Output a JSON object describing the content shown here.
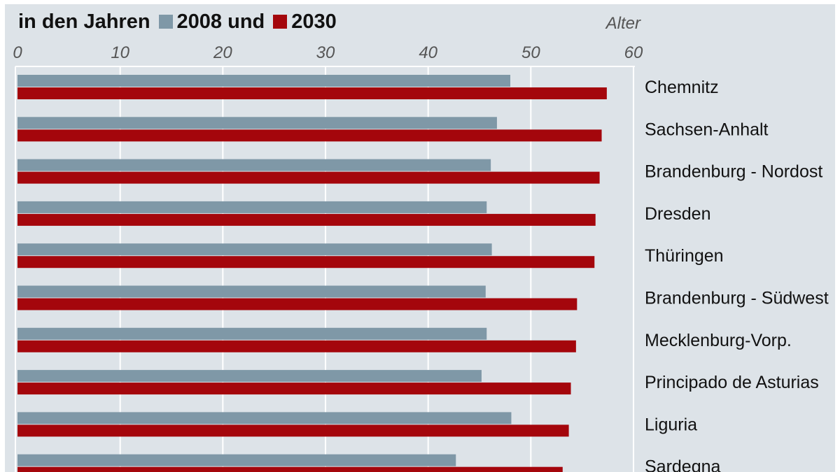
{
  "legend": {
    "prefix": "in den Jahren",
    "series_a": "2008 und",
    "series_b": "2030"
  },
  "colors": {
    "panel": "#dde3e8",
    "series_2008": "#7f98a7",
    "series_2030": "#a4060c",
    "grid": "#ffffff",
    "text": "#111111",
    "axis_text": "#555555"
  },
  "chart_data": {
    "type": "bar",
    "orientation": "horizontal",
    "xlabel": "Alter",
    "xlim": [
      0,
      60
    ],
    "xticks": [
      0,
      10,
      20,
      30,
      40,
      50,
      60
    ],
    "grid": true,
    "legend_position": "top-left",
    "categories": [
      "Chemnitz",
      "Sachsen-Anhalt",
      "Brandenburg - Nordost",
      "Dresden",
      "Thüringen",
      "Brandenburg - Südwest",
      "Mecklenburg-Vorp.",
      "Principado de Asturias",
      "Liguria",
      "Sardegna"
    ],
    "series": [
      {
        "name": "2008",
        "values": [
          48.0,
          46.7,
          46.1,
          45.7,
          46.2,
          45.6,
          45.7,
          45.2,
          48.1,
          42.7
        ]
      },
      {
        "name": "2030",
        "values": [
          57.4,
          56.9,
          56.7,
          56.3,
          56.2,
          54.5,
          54.4,
          53.9,
          53.7,
          53.1
        ]
      }
    ]
  }
}
